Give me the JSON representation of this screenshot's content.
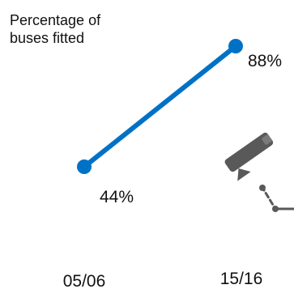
{
  "chart_data": {
    "type": "line",
    "ylabel": "Percentage of buses fitted",
    "categories": [
      "05/06",
      "15/16"
    ],
    "series": [
      {
        "values": [
          44,
          88
        ],
        "labels": [
          "44%",
          "88%"
        ]
      }
    ],
    "colors": {
      "line": "#0072C6",
      "camera_icon": "#595959"
    },
    "icons": [
      "cctv-camera-icon"
    ]
  }
}
